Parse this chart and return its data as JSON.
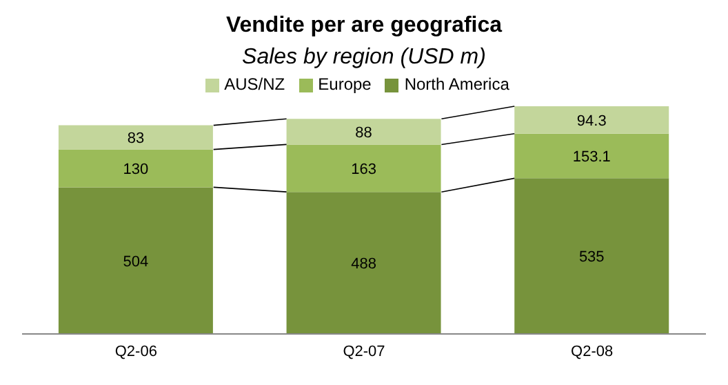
{
  "chart_data": {
    "type": "bar",
    "title": "Vendite per are geografica",
    "subtitle": "Sales by region (USD m)",
    "categories": [
      "Q2-06",
      "Q2-07",
      "Q2-08"
    ],
    "stacked": true,
    "data_labels": true,
    "legend": "top",
    "grid": false,
    "series": [
      {
        "name": "North America",
        "color": "#77933c",
        "values": [
          504,
          488,
          535
        ]
      },
      {
        "name": "Europe",
        "color": "#9bbb59",
        "values": [
          130,
          163,
          153.1
        ]
      },
      {
        "name": "AUS/NZ",
        "color": "#c3d69b",
        "values": [
          83,
          88,
          94.3
        ]
      }
    ]
  }
}
